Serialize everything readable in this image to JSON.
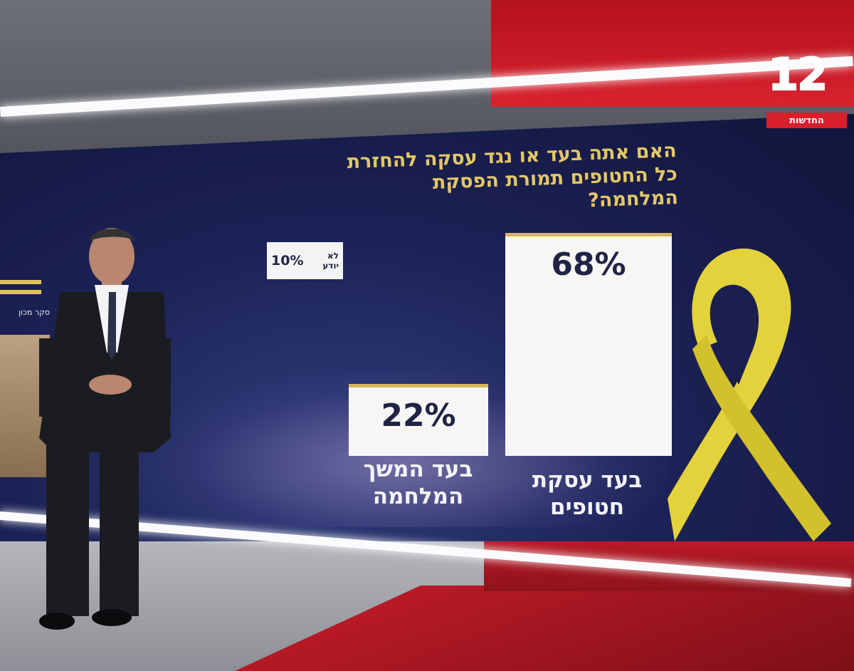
{
  "channel": {
    "logo_number": "12",
    "logo_text": "החדשות",
    "accent_color": "#d81f2c"
  },
  "sidebar_tag": "סקר מכון",
  "chart_data": {
    "type": "bar",
    "title": [
      "האם אתה בעד או נגד עסקה להחזרת",
      "כל החטופים תמורת הפסקת",
      "המלחמה?"
    ],
    "categories": [
      {
        "line1": "בעד עסקת",
        "line2": "חטופים"
      },
      {
        "line1": "בעד המשך",
        "line2": "המלחמה"
      }
    ],
    "values": [
      68,
      22
    ],
    "value_labels": [
      "68%",
      "22%"
    ],
    "unit": "%",
    "ylim": [
      0,
      100
    ],
    "extra": {
      "label_line1": "לא",
      "label_line2": "יודע",
      "value": 10,
      "value_label": "10%"
    },
    "bar_color": "#f7f6f5",
    "bar_top_color": "#d8b85a",
    "label_color": "#f4f4f8",
    "title_color": "#e3c766"
  },
  "decoration": {
    "ribbon_icon": "yellow-ribbon-icon",
    "ribbon_color": "#e4d23c"
  }
}
